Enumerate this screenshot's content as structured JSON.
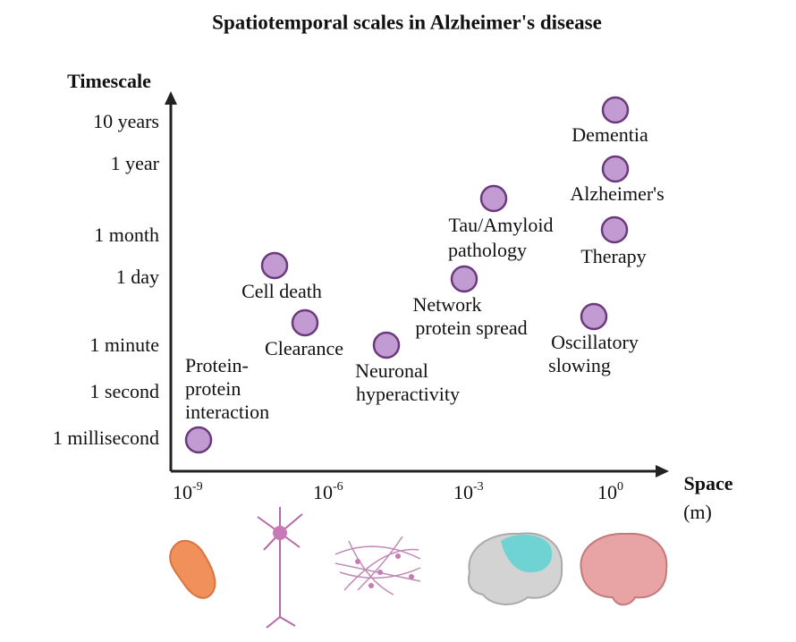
{
  "title": "Spatiotemporal scales in Alzheimer's disease",
  "y_axis": {
    "label": "Timescale",
    "ticks": [
      "10 years",
      "1 year",
      "1 month",
      "1 day",
      "1 minute",
      "1 second",
      "1 millisecond"
    ]
  },
  "x_axis": {
    "label": "Space",
    "unit": "(m)",
    "ticks": [
      {
        "base": "10",
        "exp": "-9"
      },
      {
        "base": "10",
        "exp": "-6"
      },
      {
        "base": "10",
        "exp": "-3"
      },
      {
        "base": "10",
        "exp": "0"
      }
    ]
  },
  "nodes": [
    {
      "label": [
        "Dementia"
      ]
    },
    {
      "label": [
        "Alzheimer's"
      ]
    },
    {
      "label": [
        "Therapy"
      ]
    },
    {
      "label": [
        "Tau/Amyloid",
        "pathology"
      ]
    },
    {
      "label": [
        "Network",
        "protein spread"
      ]
    },
    {
      "label": [
        "Oscillatory",
        "slowing"
      ]
    },
    {
      "label": [
        "Cell death"
      ]
    },
    {
      "label": [
        "Clearance"
      ]
    },
    {
      "label": [
        "Neuronal",
        "hyperactivity"
      ]
    },
    {
      "label": [
        "Protein-",
        "protein",
        "interaction"
      ]
    }
  ]
}
